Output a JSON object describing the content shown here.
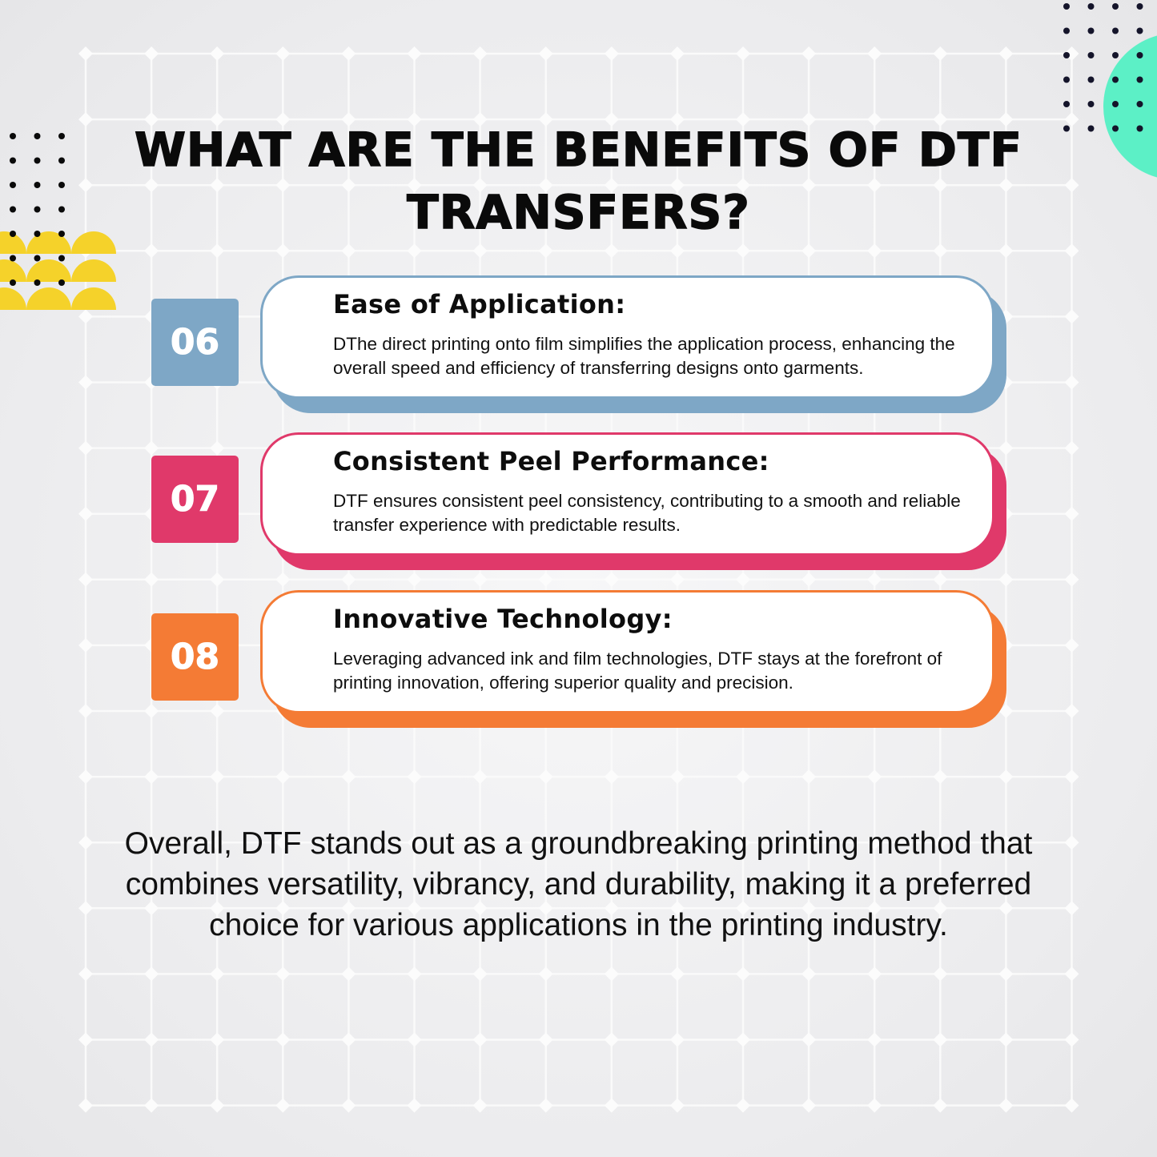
{
  "title": "WHAT ARE THE BENEFITS OF DTF TRANSFERS?",
  "items": [
    {
      "number": "06",
      "heading": "Ease of Application:",
      "text": "DThe direct printing onto film simplifies the application process, enhancing the overall speed and efficiency of transferring designs onto garments.",
      "color": "#7ea7c6"
    },
    {
      "number": "07",
      "heading": "Consistent Peel Performance:",
      "text": "DTF ensures consistent peel consistency, contributing to a smooth and reliable transfer experience with predictable results.",
      "color": "#e0396a"
    },
    {
      "number": "08",
      "heading": "Innovative Technology:",
      "text": "Leveraging advanced ink and film technologies, DTF stays at the forefront of printing innovation, offering superior quality and precision.",
      "color": "#f47b35"
    }
  ],
  "summary": "Overall, DTF stands out as a groundbreaking printing method that combines versatility, vibrancy, and durability, making it a preferred choice for various applications in the printing industry.",
  "colors": {
    "yellow": "#f5d22a",
    "mint": "#5cf0c6",
    "dots": "#14142a"
  }
}
